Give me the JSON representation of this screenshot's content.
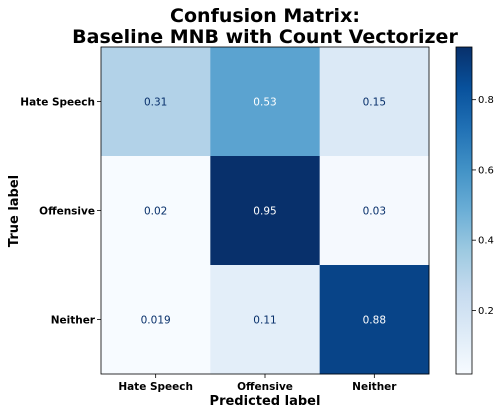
{
  "chart_data": {
    "type": "heatmap",
    "title": [
      "Confusion Matrix:",
      "Baseline MNB with Count Vectorizer"
    ],
    "xlabel": "Predicted label",
    "ylabel": "True label",
    "x_categories": [
      "Hate Speech",
      "Offensive",
      "Neither"
    ],
    "y_categories": [
      "Hate Speech",
      "Offensive",
      "Neither"
    ],
    "values": [
      [
        0.31,
        0.53,
        0.15
      ],
      [
        0.02,
        0.95,
        0.03
      ],
      [
        0.019,
        0.11,
        0.88
      ]
    ],
    "value_labels": [
      [
        "0.31",
        "0.53",
        "0.15"
      ],
      [
        "0.02",
        "0.95",
        "0.03"
      ],
      [
        "0.019",
        "0.11",
        "0.88"
      ]
    ],
    "colormap": "Blues",
    "colorbar": {
      "range": [
        0.019,
        0.95
      ],
      "ticks": [
        0.2,
        0.4,
        0.6,
        0.8
      ],
      "tick_labels": [
        "0.2",
        "0.4",
        "0.6",
        "0.8"
      ]
    },
    "grid": false
  }
}
